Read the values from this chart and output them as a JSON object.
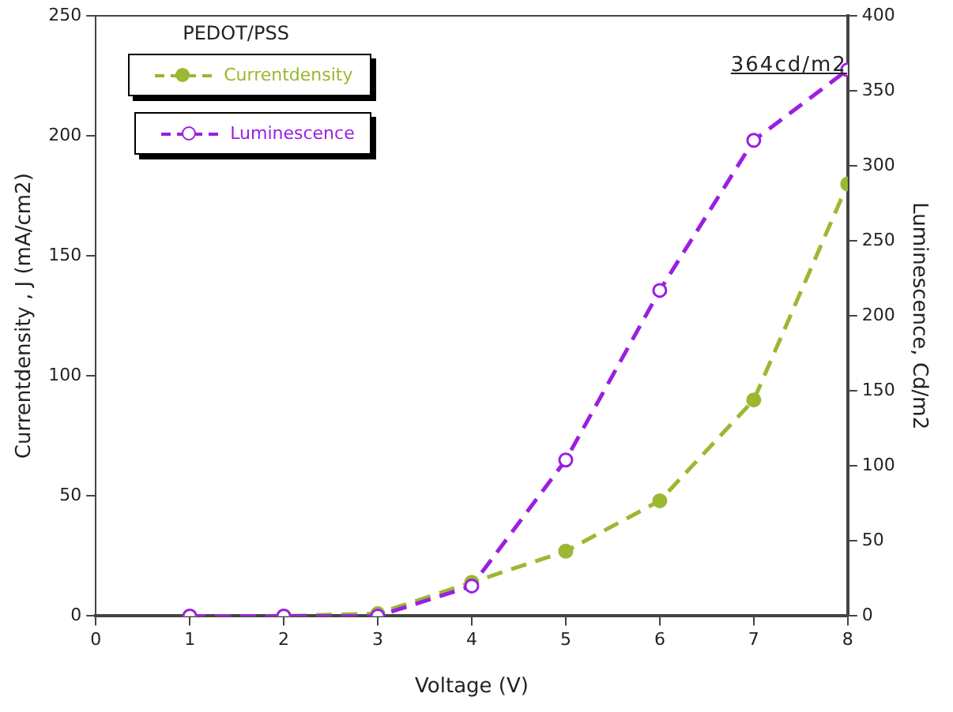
{
  "chart_data": {
    "type": "line",
    "xlabel": "Voltage (V)",
    "ylabel": "Currentdensity , J (mA/cm2)",
    "y2label": "Luminescence, Cd/m2",
    "legend_title": "PEDOT/PSS",
    "x": [
      1,
      2,
      3,
      4,
      5,
      6,
      7,
      8
    ],
    "series": [
      {
        "name": "Currentdensity",
        "color": "#9ab832",
        "values": [
          0,
          0,
          1,
          14,
          27,
          48,
          90,
          180
        ]
      },
      {
        "name": "Luminescence",
        "color": "#9b1fe0",
        "axis": "y2",
        "values": [
          0,
          0,
          0,
          20,
          104,
          217,
          317,
          364
        ]
      }
    ],
    "xlim": [
      0,
      8
    ],
    "xticks": [
      0,
      1,
      2,
      3,
      4,
      5,
      6,
      7,
      8
    ],
    "ylim": [
      0,
      250
    ],
    "yticks": [
      0,
      50,
      100,
      150,
      200,
      250
    ],
    "y2lim": [
      0,
      400
    ],
    "y2ticks": [
      0,
      50,
      100,
      150,
      200,
      250,
      300,
      350,
      400
    ],
    "annotations": [
      "364cd/m2"
    ],
    "legend": "top left",
    "grid": false,
    "marker": "circle",
    "line_style": "dashed"
  }
}
